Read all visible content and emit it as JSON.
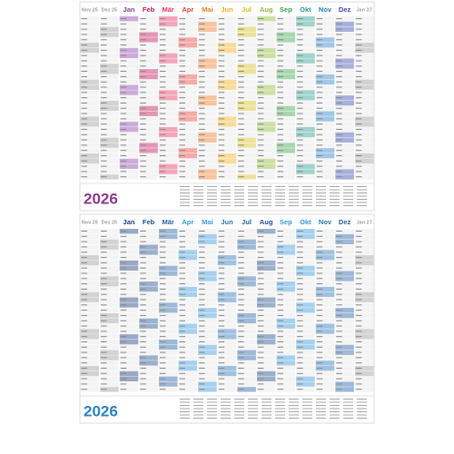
{
  "posters": [
    {
      "year": "2026",
      "months": [
        "Nov 25",
        "Dez 25",
        "Jan",
        "Feb",
        "Mär",
        "Apr",
        "Mai",
        "Jun",
        "Jul",
        "Aug",
        "Sep",
        "Okt",
        "Nov",
        "Dez",
        "Jan 27"
      ]
    },
    {
      "year": "2026",
      "months": [
        "Nov 25",
        "Dez 25",
        "Jan",
        "Feb",
        "Mär",
        "Apr",
        "Mai",
        "Jun",
        "Jul",
        "Aug",
        "Sep",
        "Okt",
        "Nov",
        "Dez",
        "Jan 27"
      ]
    }
  ]
}
